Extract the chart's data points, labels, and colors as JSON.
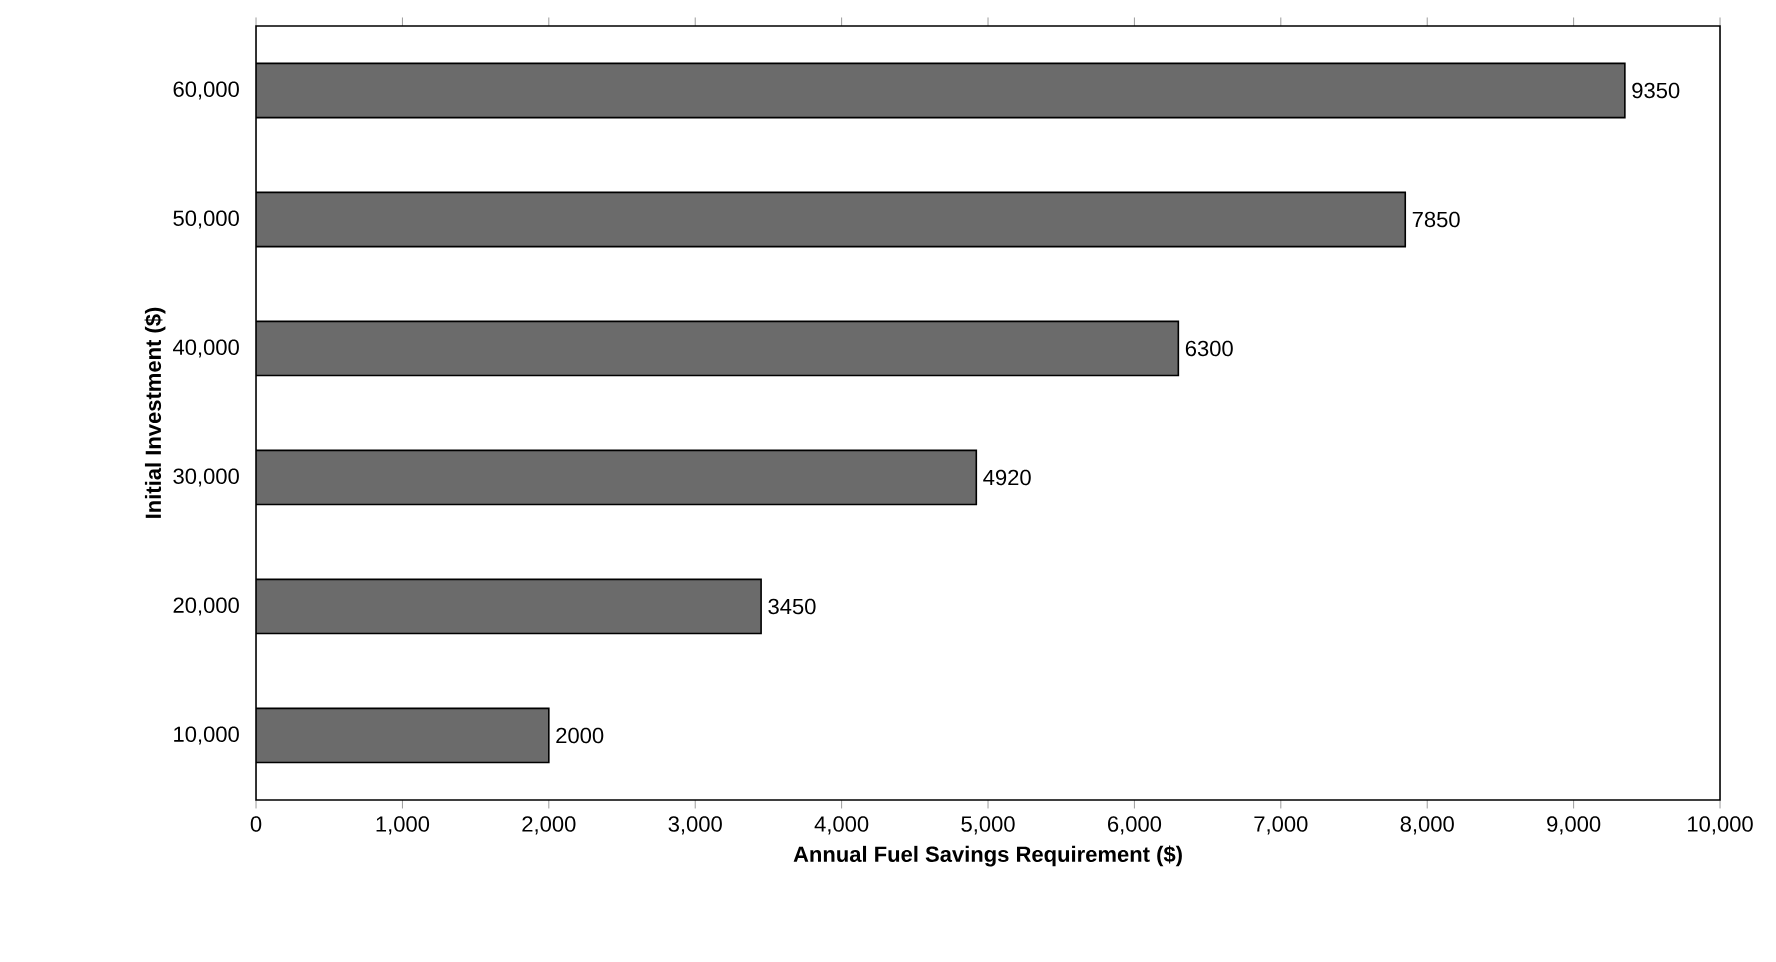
{
  "chart_data": {
    "type": "bar",
    "orientation": "horizontal",
    "xlabel": "Annual Fuel Savings Requirement ($)",
    "ylabel": "Initial Investment ($)",
    "categories": [
      "60,000",
      "50,000",
      "40,000",
      "30,000",
      "20,000",
      "10,000"
    ],
    "values": [
      9350,
      7850,
      6300,
      4920,
      3450,
      2000
    ],
    "color": "#6b6b6b",
    "data_labels": true,
    "xlim": [
      0,
      10000
    ],
    "xticks": [
      0,
      {
        "value": 1000,
        "label": "1,000"
      },
      {
        "value": 2000,
        "label": "2,000"
      },
      {
        "value": 3000,
        "label": "3,000"
      },
      {
        "value": 4000,
        "label": "4,000"
      },
      {
        "value": 5000,
        "label": "5,000"
      },
      {
        "value": 6000,
        "label": "6,000"
      },
      {
        "value": 7000,
        "label": "7,000"
      },
      {
        "value": 8000,
        "label": "8,000"
      },
      {
        "value": 9000,
        "label": "9,000"
      },
      {
        "value": 10000,
        "label": "10,000"
      }
    ]
  }
}
